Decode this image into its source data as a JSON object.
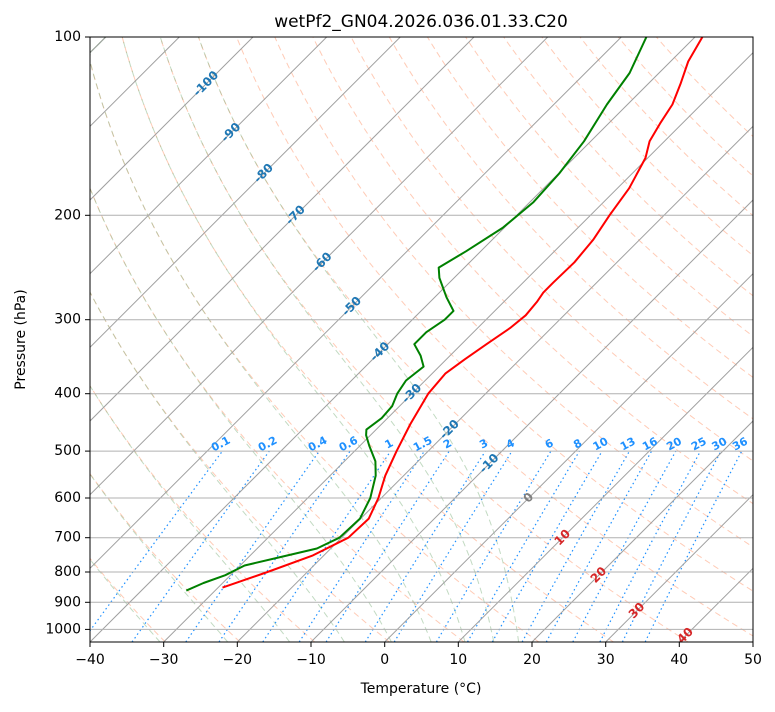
{
  "chart_data": {
    "type": "line",
    "subtype": "skew-t log-p",
    "title": "wetPf2_GN04.2026.036.01.33.C20",
    "xlabel": "Temperature (°C)",
    "ylabel": "Pressure (hPa)",
    "xlim": [
      -40,
      50
    ],
    "ylim": [
      1050,
      100
    ],
    "y_scale": "log",
    "grid": true,
    "x_ticks": [
      -40,
      -30,
      -20,
      -10,
      0,
      10,
      20,
      30,
      40,
      50
    ],
    "x_tick_labels": [
      "−40",
      "−30",
      "−20",
      "−10",
      "0",
      "10",
      "20",
      "30",
      "40",
      "50"
    ],
    "y_ticks": [
      1000,
      900,
      800,
      700,
      600,
      500,
      400,
      300,
      200,
      100
    ],
    "y_tick_labels": [
      "1000",
      "900",
      "800",
      "700",
      "600",
      "500",
      "400",
      "300",
      "200",
      "100"
    ],
    "series": [
      {
        "name": "Temperature",
        "color": "#ff0000",
        "points": [
          {
            "p": 850,
            "t": -29.4
          },
          {
            "p": 800,
            "t": -25.4
          },
          {
            "p": 750,
            "t": -21.5
          },
          {
            "p": 700,
            "t": -19.1
          },
          {
            "p": 650,
            "t": -18.9
          },
          {
            "p": 600,
            "t": -20.4
          },
          {
            "p": 550,
            "t": -22.5
          },
          {
            "p": 500,
            "t": -24.3
          },
          {
            "p": 450,
            "t": -26.1
          },
          {
            "p": 400,
            "t": -27.8
          },
          {
            "p": 370,
            "t": -28.2
          },
          {
            "p": 350,
            "t": -27.5
          },
          {
            "p": 330,
            "t": -26.6
          },
          {
            "p": 310,
            "t": -25.6
          },
          {
            "p": 295,
            "t": -25.2
          },
          {
            "p": 280,
            "t": -25.5
          },
          {
            "p": 270,
            "t": -25.9
          },
          {
            "p": 260,
            "t": -25.9
          },
          {
            "p": 240,
            "t": -25.8
          },
          {
            "p": 220,
            "t": -26.3
          },
          {
            "p": 200,
            "t": -27.4
          },
          {
            "p": 180,
            "t": -28.4
          },
          {
            "p": 160,
            "t": -30.3
          },
          {
            "p": 150,
            "t": -32.0
          },
          {
            "p": 140,
            "t": -33.0
          },
          {
            "p": 130,
            "t": -33.9
          },
          {
            "p": 120,
            "t": -35.6
          },
          {
            "p": 110,
            "t": -37.6
          },
          {
            "p": 100,
            "t": -39.0
          }
        ]
      },
      {
        "name": "Dewpoint",
        "color": "#008000",
        "points": [
          {
            "p": 860,
            "t": -33.9
          },
          {
            "p": 835,
            "t": -32.6
          },
          {
            "p": 810,
            "t": -30.7
          },
          {
            "p": 780,
            "t": -29.4
          },
          {
            "p": 755,
            "t": -25.7
          },
          {
            "p": 730,
            "t": -21.9
          },
          {
            "p": 700,
            "t": -20.3
          },
          {
            "p": 650,
            "t": -20.1
          },
          {
            "p": 600,
            "t": -21.5
          },
          {
            "p": 550,
            "t": -23.8
          },
          {
            "p": 520,
            "t": -25.8
          },
          {
            "p": 490,
            "t": -28.7
          },
          {
            "p": 470,
            "t": -30.6
          },
          {
            "p": 460,
            "t": -31.3
          },
          {
            "p": 440,
            "t": -30.8
          },
          {
            "p": 420,
            "t": -31.0
          },
          {
            "p": 400,
            "t": -32.0
          },
          {
            "p": 380,
            "t": -32.6
          },
          {
            "p": 360,
            "t": -32.1
          },
          {
            "p": 345,
            "t": -34.0
          },
          {
            "p": 330,
            "t": -36.4
          },
          {
            "p": 315,
            "t": -36.4
          },
          {
            "p": 300,
            "t": -35.6
          },
          {
            "p": 290,
            "t": -35.6
          },
          {
            "p": 275,
            "t": -38.4
          },
          {
            "p": 255,
            "t": -42.0
          },
          {
            "p": 245,
            "t": -43.5
          },
          {
            "p": 230,
            "t": -42.0
          },
          {
            "p": 210,
            "t": -40.2
          },
          {
            "p": 190,
            "t": -39.5
          },
          {
            "p": 170,
            "t": -39.9
          },
          {
            "p": 150,
            "t": -40.9
          },
          {
            "p": 130,
            "t": -42.8
          },
          {
            "p": 115,
            "t": -44.0
          },
          {
            "p": 100,
            "t": -46.6
          }
        ]
      }
    ],
    "background_lines": {
      "isotherms_c": [
        -120,
        -110,
        -100,
        -90,
        -80,
        -70,
        -60,
        -50,
        -40,
        -30,
        -20,
        -10,
        0,
        10,
        20,
        30,
        40,
        50
      ],
      "dry_adiabats_theta_k": [
        200,
        210,
        220,
        230,
        240,
        250,
        260,
        270,
        280,
        290,
        300,
        310,
        320,
        330,
        340,
        350,
        360,
        370,
        380,
        390,
        400,
        410,
        420,
        430,
        440
      ],
      "moist_adiabats_theta_e_k": [
        230,
        240,
        250,
        260,
        270,
        280,
        290,
        300,
        310,
        320
      ],
      "mixing_ratios_gkg": [
        0.1,
        0.2,
        0.4,
        0.6,
        1,
        1.5,
        2,
        3,
        4,
        6,
        8,
        10,
        13,
        16,
        20,
        25,
        30,
        36
      ]
    },
    "isotherm_labels": [
      {
        "text": "-100",
        "t": -100,
        "p": 120
      },
      {
        "text": "-90",
        "t": -90,
        "p": 145
      },
      {
        "text": "-80",
        "t": -80,
        "p": 170
      },
      {
        "text": "-70",
        "t": -70,
        "p": 200
      },
      {
        "text": "-60",
        "t": -60,
        "p": 240
      },
      {
        "text": "-50",
        "t": -50,
        "p": 285
      },
      {
        "text": "-40",
        "t": -40,
        "p": 340
      },
      {
        "text": "-30",
        "t": -30,
        "p": 400
      },
      {
        "text": "-20",
        "t": -20,
        "p": 460
      },
      {
        "text": "-10",
        "t": -10,
        "p": 525
      },
      {
        "text": "0",
        "t": 0,
        "p": 600
      },
      {
        "text": "10",
        "t": 10,
        "p": 700
      },
      {
        "text": "20",
        "t": 20,
        "p": 810
      },
      {
        "text": "30",
        "t": 30,
        "p": 930
      },
      {
        "text": "40",
        "t": 40,
        "p": 1025
      }
    ],
    "mixing_ratio_labels": [
      "0.1",
      "0.2",
      "0.4",
      "0.6",
      "1",
      "1.5",
      "2",
      "3",
      "4",
      "6",
      "8",
      "10",
      "13",
      "16",
      "20",
      "25",
      "30",
      "36"
    ],
    "colors": {
      "isotherm_label_cold": "#1f77b4",
      "isotherm_label_zero": "#808080",
      "isotherm_label_warm": "#d62728",
      "mixing_ratio": "#1e90ff",
      "dry_adiabat": "#ffa07a",
      "moist_adiabat": "#8fbc8f",
      "grid": "#b0b0b0",
      "skewed_isotherm": "#a0a0a0"
    }
  }
}
